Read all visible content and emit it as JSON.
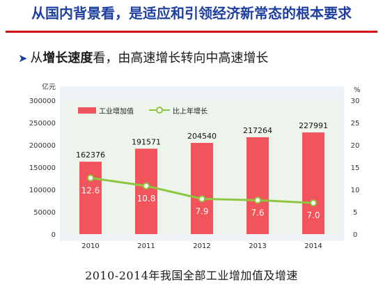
{
  "slide": {
    "title": "从国内背景看，是适应和引领经济新常态的根本要求",
    "subtitle_prefix": "从",
    "subtitle_bold": "增长速度",
    "subtitle_rest": "看，由高速增长转向中高速增长",
    "caption": "2010-2014年我国全部工业增加值及增速"
  },
  "colors": {
    "title": "#1f3fa0",
    "rule": "#d40f14",
    "bar": "#f1545a",
    "line": "#8dc63f",
    "plot_bg": "#ecf4ec",
    "outer_bg": "#eef3f7"
  },
  "chart_data": {
    "type": "bar",
    "categories": [
      "2010",
      "2011",
      "2012",
      "2013",
      "2014"
    ],
    "series": [
      {
        "name": "工业增加值",
        "type": "bar",
        "axis": "left",
        "values": [
          162376,
          191571,
          204540,
          217264,
          227991
        ]
      },
      {
        "name": "比上年增长",
        "type": "line",
        "axis": "right",
        "values": [
          12.6,
          10.8,
          7.9,
          7.6,
          7.0
        ]
      }
    ],
    "y_left": {
      "unit": "亿元",
      "ylim": [
        0,
        300000
      ],
      "ticks": [
        0,
        50000,
        100000,
        150000,
        200000,
        250000,
        300000
      ]
    },
    "y_right": {
      "unit": "%",
      "ylim": [
        0,
        30
      ],
      "ticks": [
        0,
        5,
        10,
        15,
        20,
        25,
        30
      ]
    },
    "legend": "top-left",
    "grid": false
  }
}
